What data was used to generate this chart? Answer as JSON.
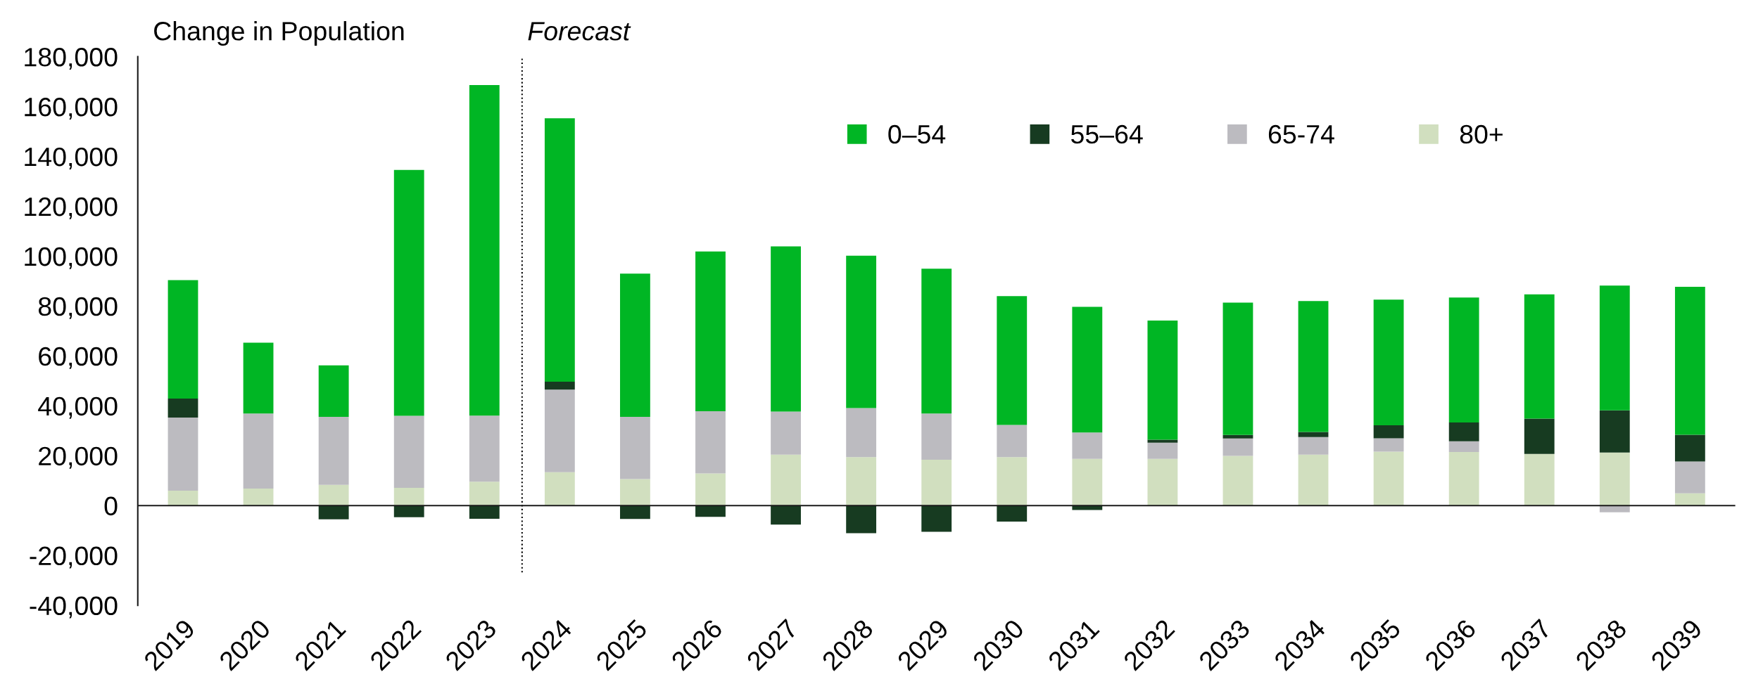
{
  "chart_data": {
    "type": "bar",
    "title": "Change in Population",
    "stacked": true,
    "legend": "top right",
    "grid": false,
    "categories": [
      "2019",
      "2020",
      "2021",
      "2022",
      "2023",
      "2024",
      "2025",
      "2026",
      "2027",
      "2028",
      "2029",
      "2030",
      "2031",
      "2032",
      "2033",
      "2034",
      "2035",
      "2036",
      "2037",
      "2038",
      "2039"
    ],
    "series": [
      {
        "name": "80+",
        "color": "#d1dfbf",
        "values": [
          6000,
          6800,
          8300,
          7100,
          9600,
          13400,
          10600,
          12900,
          20400,
          19400,
          18400,
          19400,
          18700,
          18700,
          19900,
          20400,
          21600,
          21500,
          20700,
          21300,
          4900
        ]
      },
      {
        "name": "65-74",
        "color": "#bcbbc0",
        "values": [
          29300,
          30100,
          27300,
          28900,
          26500,
          33100,
          25000,
          24900,
          17300,
          19700,
          18500,
          12900,
          10600,
          6500,
          7000,
          7100,
          5400,
          4300,
          0,
          -2700,
          12800
        ]
      },
      {
        "name": "55–64",
        "color": "#173b21",
        "values": [
          7600,
          0,
          -5500,
          -4700,
          -5300,
          3200,
          -5400,
          -4500,
          -7600,
          -11100,
          -10500,
          -6400,
          -1800,
          1200,
          1400,
          2000,
          5200,
          7500,
          14200,
          16900,
          10700
        ]
      },
      {
        "name": "0–54",
        "color": "#00b624",
        "values": [
          47500,
          28400,
          20600,
          98600,
          132500,
          105600,
          57400,
          64100,
          66200,
          61100,
          58100,
          51700,
          50400,
          47800,
          53100,
          52500,
          50400,
          50100,
          49800,
          50000,
          59300
        ]
      }
    ],
    "ylim": [
      -40000,
      180000
    ],
    "yticks": [
      {
        "value": -40000,
        "label": "-40,000"
      },
      {
        "value": -20000,
        "label": "-20,000"
      },
      {
        "value": 0,
        "label": "0"
      },
      {
        "value": 20000,
        "label": "20,000"
      },
      {
        "value": 40000,
        "label": "40,000"
      },
      {
        "value": 60000,
        "label": "60,000"
      },
      {
        "value": 80000,
        "label": "80,000"
      },
      {
        "value": 100000,
        "label": "100,000"
      },
      {
        "value": 120000,
        "label": "120,000"
      },
      {
        "value": 140000,
        "label": "140,000"
      },
      {
        "value": 160000,
        "label": "160,000"
      },
      {
        "value": 180000,
        "label": "180,000"
      }
    ],
    "ref_lines": [
      {
        "axis": "x",
        "value": "2024",
        "label": "Forecast",
        "line_style": "dotted",
        "color": "#000000"
      }
    ]
  }
}
